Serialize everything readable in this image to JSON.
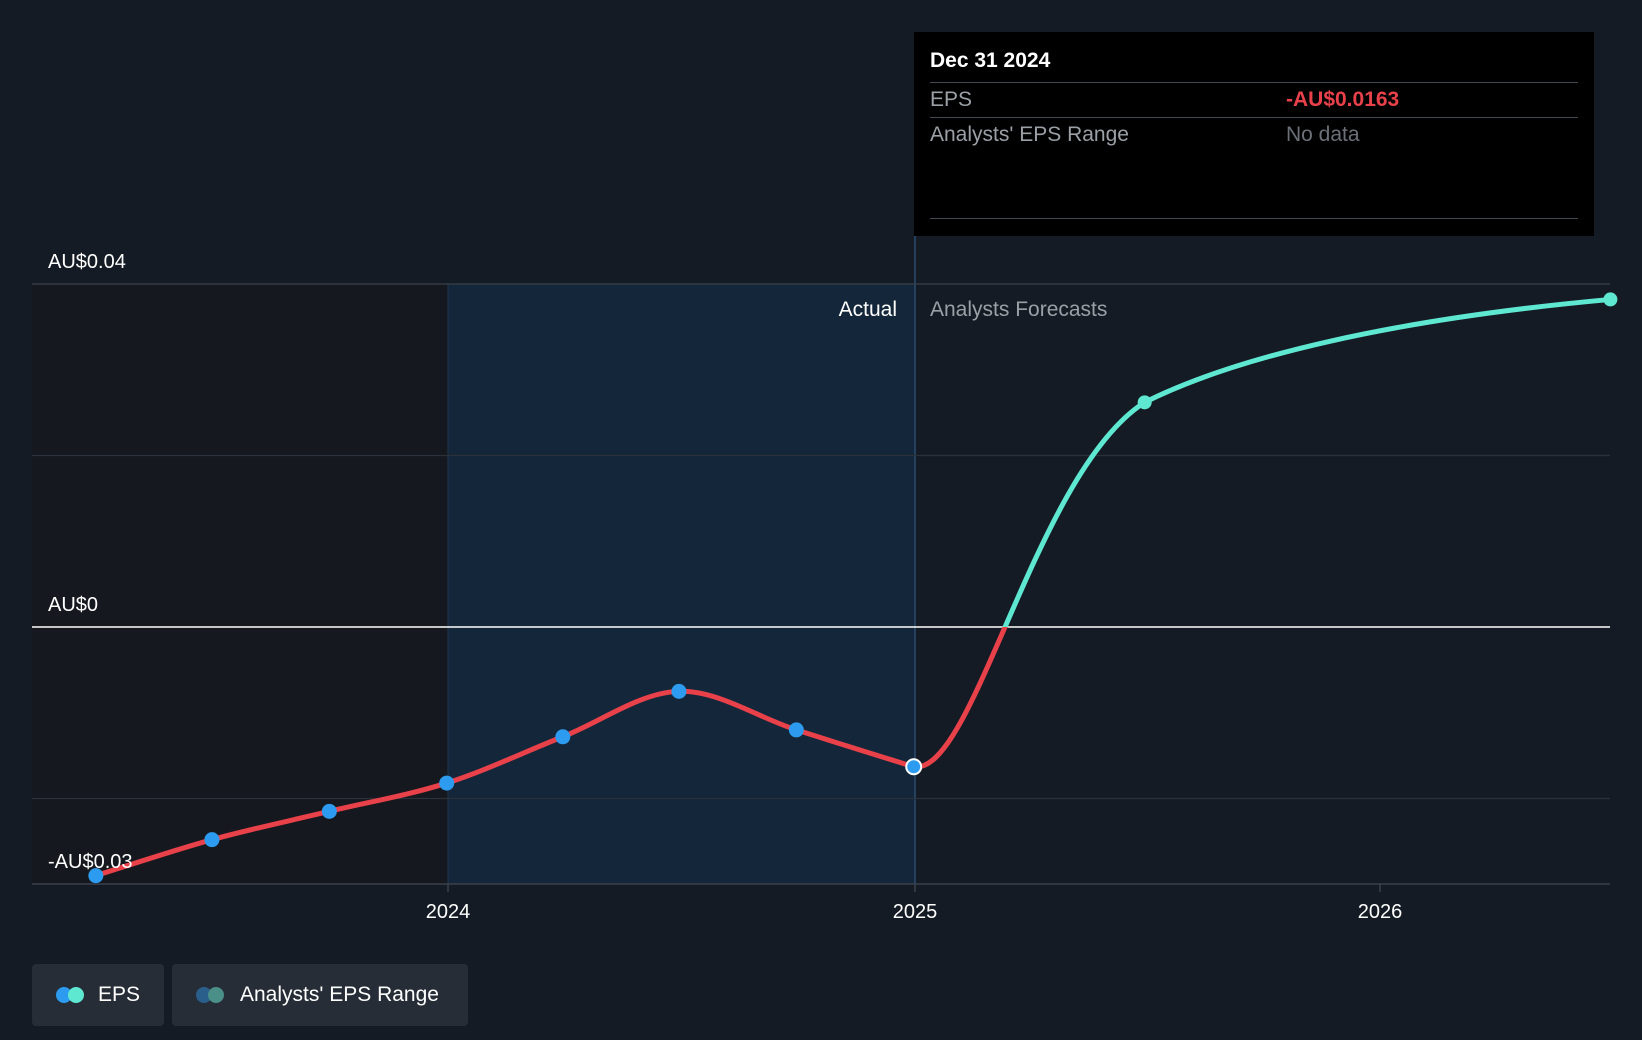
{
  "chart_data": {
    "type": "line",
    "y_axis_labels": [
      "AU$0.04",
      "AU$0",
      "-AU$0.03"
    ],
    "x_tick_labels": [
      "2024",
      "2025",
      "2026"
    ],
    "ylim": [
      -0.03,
      0.04
    ],
    "region_labels": {
      "actual": "Actual",
      "forecast": "Analysts Forecasts"
    },
    "series": [
      {
        "name": "EPS",
        "type": "actual",
        "points": [
          {
            "x": "2023-03-31",
            "y": -0.029
          },
          {
            "x": "2023-06-30",
            "y": -0.0248
          },
          {
            "x": "2023-09-30",
            "y": -0.0215
          },
          {
            "x": "2023-12-31",
            "y": -0.0182
          },
          {
            "x": "2024-03-31",
            "y": -0.0128
          },
          {
            "x": "2024-06-30",
            "y": -0.0075
          },
          {
            "x": "2024-09-30",
            "y": -0.012
          },
          {
            "x": "2024-12-31",
            "y": -0.0163
          }
        ]
      },
      {
        "name": "EPS",
        "type": "forecast",
        "points": [
          {
            "x": "2024-12-31",
            "y": -0.0163
          },
          {
            "x": "2025-06-30",
            "y": 0.0262
          },
          {
            "x": "2026-06-30",
            "y": 0.0382
          }
        ]
      }
    ],
    "colors": {
      "negative": "#e8414a",
      "positive": "#5ee8d2",
      "marker_actual": "#2d9cf0",
      "marker_forecast": "#5ee8d2",
      "actual_band": "#13263a",
      "past_shade": "#15181e"
    }
  },
  "tooltip": {
    "date": "Dec 31 2024",
    "rows": [
      {
        "key": "EPS",
        "value": "-AU$0.0163"
      },
      {
        "key": "Analysts' EPS Range",
        "value": "No data"
      }
    ]
  },
  "legend": {
    "items": [
      {
        "label": "EPS",
        "colors": [
          "#2d9cf0",
          "#5ee8d2"
        ]
      },
      {
        "label": "Analysts' EPS Range",
        "colors": [
          "#2a5f8c",
          "#4a8f88"
        ]
      }
    ]
  }
}
